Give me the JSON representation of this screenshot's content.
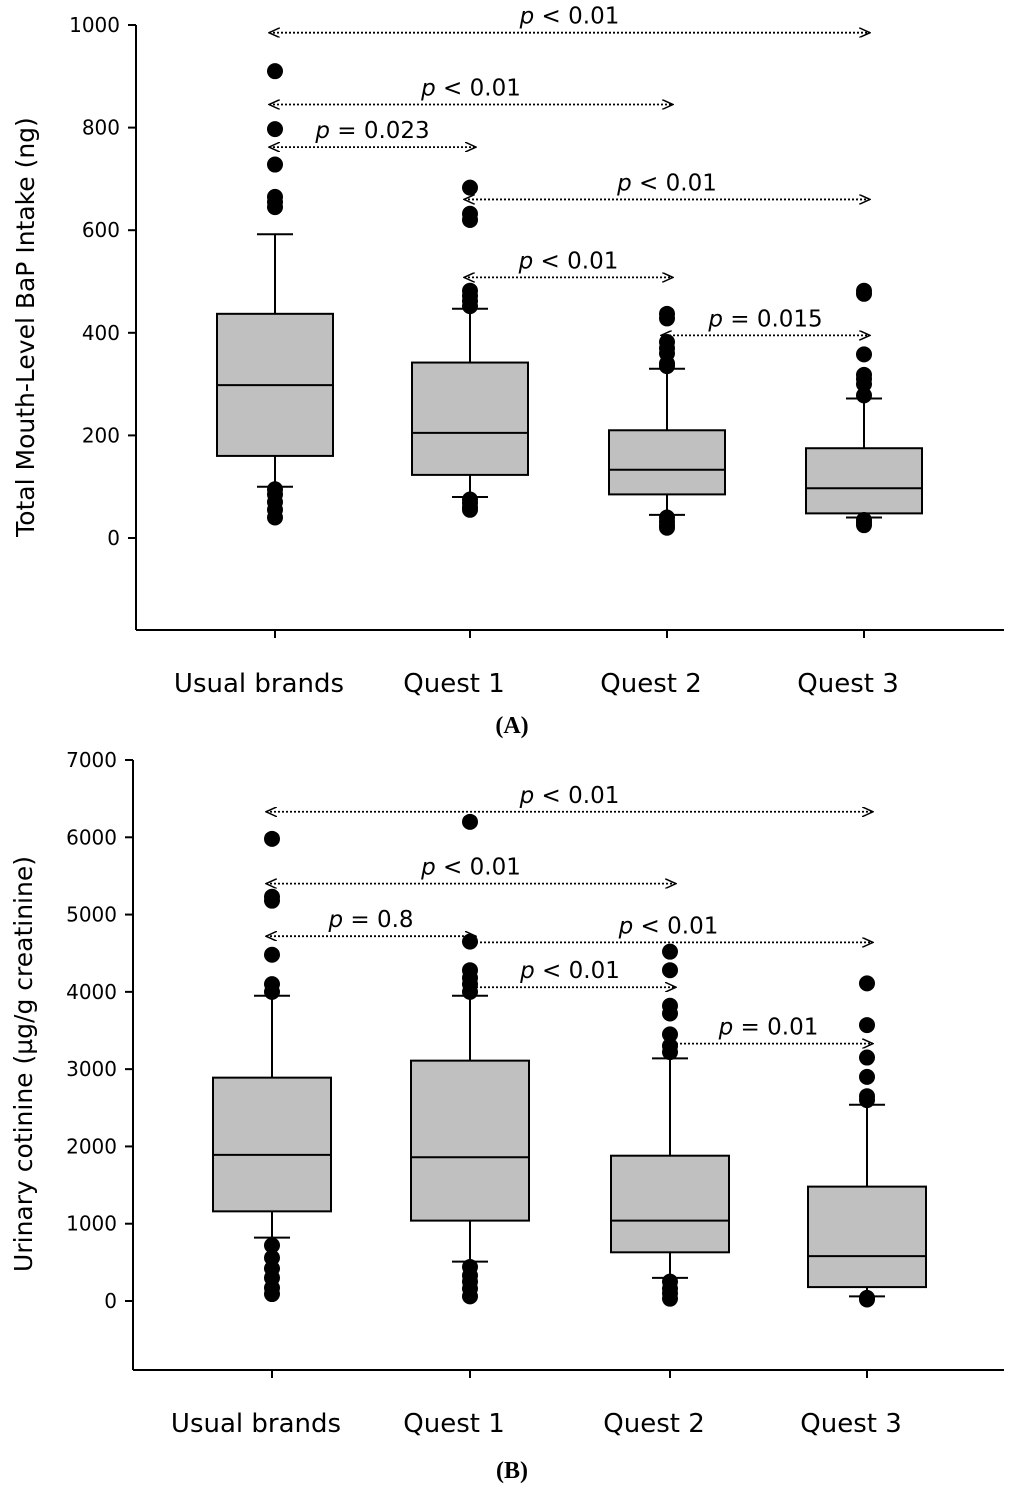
{
  "chart_data": [
    {
      "id": "A",
      "type": "box",
      "panel_label": "A",
      "ylabel": "Total Mouth-Level BaP Intake (ng)",
      "xlabel": "",
      "ylim": [
        -180,
        1000
      ],
      "yticks": [
        0,
        200,
        400,
        600,
        800,
        1000
      ],
      "categories": [
        "Usual brands",
        "Quest 1",
        "Quest 2",
        "Quest 3"
      ],
      "boxes": [
        {
          "name": "Usual brands",
          "q1": 160,
          "median": 298,
          "q3": 437,
          "whisker_low": 100,
          "whisker_high": 592,
          "outliers": [
            910,
            797,
            728,
            665,
            655,
            645,
            95,
            85,
            70,
            55,
            40
          ]
        },
        {
          "name": "Quest 1",
          "q1": 123,
          "median": 205,
          "q3": 342,
          "whisker_low": 80,
          "whisker_high": 447,
          "outliers": [
            683,
            632,
            620,
            482,
            472,
            462,
            452,
            75,
            68,
            60,
            55
          ]
        },
        {
          "name": "Quest 2",
          "q1": 85,
          "median": 133,
          "q3": 210,
          "whisker_low": 45,
          "whisker_high": 330,
          "outliers": [
            437,
            428,
            382,
            370,
            360,
            340,
            335,
            40,
            32,
            25,
            20
          ]
        },
        {
          "name": "Quest 3",
          "q1": 48,
          "median": 97,
          "q3": 175,
          "whisker_low": 40,
          "whisker_high": 272,
          "outliers": [
            482,
            476,
            358,
            318,
            310,
            300,
            278,
            35,
            30,
            25
          ]
        }
      ],
      "comparisons": [
        {
          "from": 0,
          "to": 3,
          "y": 985,
          "label_prefix": "p",
          "label_rest": " < 0.01"
        },
        {
          "from": 0,
          "to": 2,
          "y": 845,
          "label_prefix": "p",
          "label_rest": " < 0.01"
        },
        {
          "from": 0,
          "to": 1,
          "y": 762,
          "label_prefix": "p",
          "label_rest": " = 0.023"
        },
        {
          "from": 1,
          "to": 3,
          "y": 660,
          "label_prefix": "p",
          "label_rest": " < 0.01"
        },
        {
          "from": 1,
          "to": 2,
          "y": 508,
          "label_prefix": "p",
          "label_rest": " < 0.01"
        },
        {
          "from": 2,
          "to": 3,
          "y": 395,
          "label_prefix": "p",
          "label_rest": " = 0.015"
        }
      ]
    },
    {
      "id": "B",
      "type": "box",
      "panel_label": "B",
      "ylabel": "Urinary cotinine (µg/g creatinine)",
      "xlabel": "",
      "ylim": [
        -900,
        7000
      ],
      "yticks": [
        0,
        1000,
        2000,
        3000,
        4000,
        5000,
        6000,
        7000
      ],
      "categories": [
        "Usual brands",
        "Quest 1",
        "Quest 2",
        "Quest 3"
      ],
      "boxes": [
        {
          "name": "Usual brands",
          "q1": 1160,
          "median": 1890,
          "q3": 2890,
          "whisker_low": 820,
          "whisker_high": 3950,
          "outliers": [
            5980,
            5230,
            5180,
            4480,
            4100,
            4000,
            720,
            560,
            420,
            300,
            170,
            90
          ]
        },
        {
          "name": "Quest 1",
          "q1": 1040,
          "median": 1860,
          "q3": 3110,
          "whisker_low": 510,
          "whisker_high": 3950,
          "outliers": [
            6200,
            4650,
            4280,
            4180,
            4100,
            4000,
            440,
            330,
            250,
            160,
            60
          ]
        },
        {
          "name": "Quest 2",
          "q1": 630,
          "median": 1040,
          "q3": 1880,
          "whisker_low": 300,
          "whisker_high": 3140,
          "outliers": [
            4520,
            4280,
            3820,
            3720,
            3450,
            3300,
            3220,
            250,
            160,
            100,
            30
          ]
        },
        {
          "name": "Quest 3",
          "q1": 180,
          "median": 580,
          "q3": 1480,
          "whisker_low": 60,
          "whisker_high": 2540,
          "outliers": [
            4110,
            3570,
            3150,
            2900,
            2650,
            2600,
            40,
            20
          ]
        }
      ],
      "comparisons": [
        {
          "from": 0,
          "to": 3,
          "y": 6330,
          "label_prefix": "p",
          "label_rest": " < 0.01"
        },
        {
          "from": 0,
          "to": 2,
          "y": 5400,
          "label_prefix": "p",
          "label_rest": " < 0.01"
        },
        {
          "from": 0,
          "to": 1,
          "y": 4720,
          "label_prefix": "p",
          "label_rest": " = 0.8"
        },
        {
          "from": 1,
          "to": 3,
          "y": 4640,
          "label_prefix": "p",
          "label_rest": " < 0.01"
        },
        {
          "from": 1,
          "to": 2,
          "y": 4060,
          "label_prefix": "p",
          "label_rest": " < 0.01"
        },
        {
          "from": 2,
          "to": 3,
          "y": 3330,
          "label_prefix": "p",
          "label_rest": " = 0.01"
        }
      ]
    }
  ]
}
